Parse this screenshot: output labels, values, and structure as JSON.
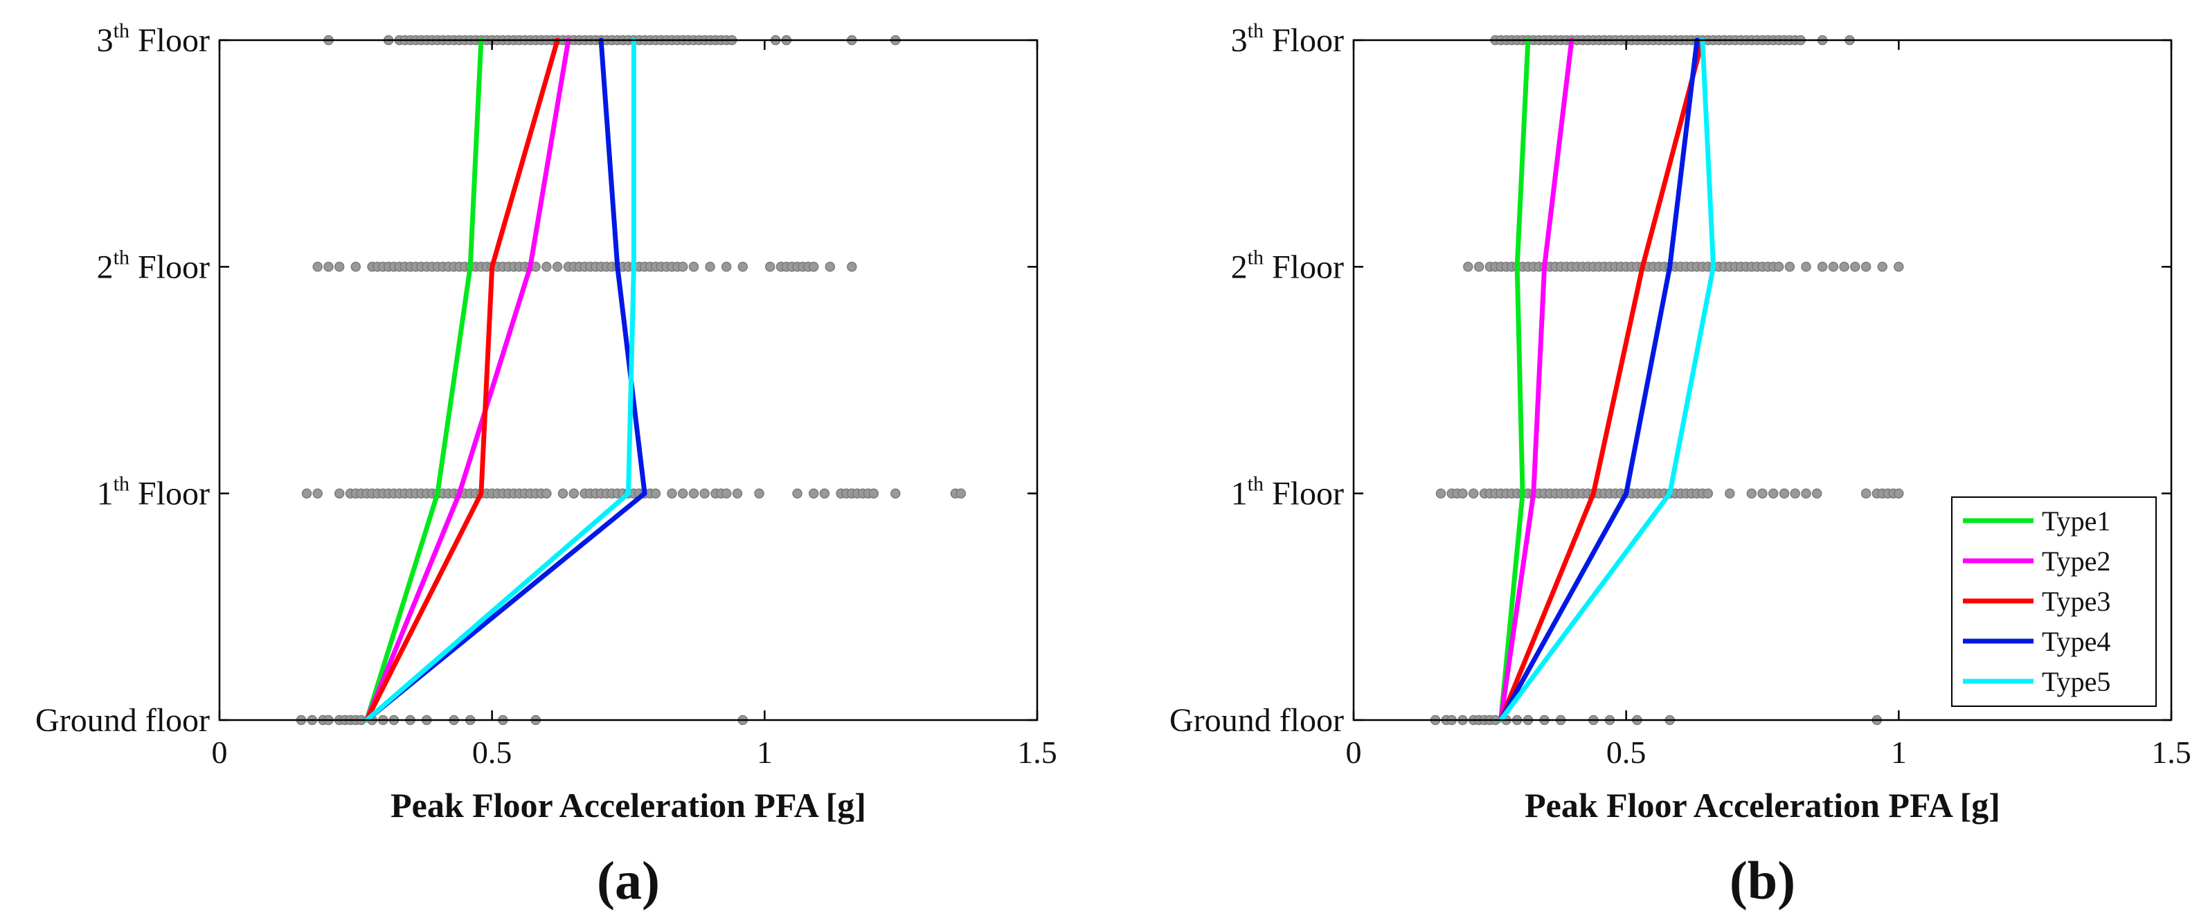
{
  "colors": {
    "type1": "#00e81b",
    "type2": "#ff00ff",
    "type3": "#ff0000",
    "type4": "#0018e6",
    "type5": "#00f2ff",
    "scatter": "#999999",
    "axis": "#000000"
  },
  "chart_data": [
    {
      "type": "line",
      "panel_label": "(a)",
      "xlabel": "Peak Floor Acceleration PFA [g]",
      "xlim": [
        0,
        1.5
      ],
      "xticks": [
        "0",
        "0.5",
        "1",
        "1.5"
      ],
      "floors": [
        {
          "base": "Ground floor",
          "sup": ""
        },
        {
          "base": "1",
          "sup": "th",
          "rest": " Floor"
        },
        {
          "base": "2",
          "sup": "th",
          "rest": " Floor"
        },
        {
          "base": "3",
          "sup": "th",
          "rest": " Floor"
        }
      ],
      "series": [
        {
          "name": "Type1",
          "color_key": "type1",
          "values": [
            0.27,
            0.4,
            0.46,
            0.48
          ]
        },
        {
          "name": "Type2",
          "color_key": "type2",
          "values": [
            0.27,
            0.44,
            0.57,
            0.64
          ]
        },
        {
          "name": "Type3",
          "color_key": "type3",
          "values": [
            0.27,
            0.48,
            0.5,
            0.62
          ]
        },
        {
          "name": "Type4",
          "color_key": "type4",
          "values": [
            0.27,
            0.78,
            0.73,
            0.7
          ]
        },
        {
          "name": "Type5",
          "color_key": "type5",
          "values": [
            0.27,
            0.75,
            0.76,
            0.76
          ]
        }
      ],
      "scatter": [
        [
          0.15,
          0.17,
          0.19,
          0.2,
          0.22,
          0.23,
          0.24,
          0.25,
          0.26,
          0.28,
          0.3,
          0.32,
          0.35,
          0.38,
          0.43,
          0.46,
          0.52,
          0.58,
          0.96
        ],
        [
          0.16,
          0.18,
          0.22,
          0.24,
          0.25,
          0.26,
          0.27,
          0.28,
          0.29,
          0.3,
          0.31,
          0.32,
          0.33,
          0.34,
          0.35,
          0.36,
          0.37,
          0.38,
          0.39,
          0.4,
          0.41,
          0.42,
          0.43,
          0.44,
          0.45,
          0.46,
          0.47,
          0.48,
          0.49,
          0.5,
          0.51,
          0.52,
          0.53,
          0.54,
          0.55,
          0.56,
          0.57,
          0.58,
          0.59,
          0.6,
          0.63,
          0.65,
          0.67,
          0.68,
          0.69,
          0.7,
          0.71,
          0.72,
          0.73,
          0.74,
          0.75,
          0.76,
          0.77,
          0.78,
          0.79,
          0.8,
          0.83,
          0.85,
          0.87,
          0.89,
          0.91,
          0.92,
          0.93,
          0.95,
          0.99,
          1.06,
          1.09,
          1.11,
          1.14,
          1.15,
          1.16,
          1.17,
          1.18,
          1.19,
          1.2,
          1.24,
          1.35,
          1.36
        ],
        [
          0.18,
          0.2,
          0.22,
          0.25,
          0.28,
          0.29,
          0.3,
          0.31,
          0.32,
          0.33,
          0.34,
          0.35,
          0.36,
          0.37,
          0.38,
          0.39,
          0.4,
          0.41,
          0.42,
          0.43,
          0.44,
          0.45,
          0.46,
          0.47,
          0.48,
          0.49,
          0.5,
          0.51,
          0.52,
          0.53,
          0.54,
          0.55,
          0.56,
          0.57,
          0.58,
          0.6,
          0.62,
          0.64,
          0.65,
          0.66,
          0.67,
          0.68,
          0.69,
          0.7,
          0.71,
          0.72,
          0.73,
          0.74,
          0.75,
          0.76,
          0.77,
          0.78,
          0.79,
          0.8,
          0.81,
          0.82,
          0.83,
          0.84,
          0.85,
          0.87,
          0.9,
          0.93,
          0.96,
          1.01,
          1.03,
          1.04,
          1.05,
          1.06,
          1.07,
          1.08,
          1.09,
          1.12,
          1.16
        ],
        [
          0.2,
          0.31,
          0.33,
          0.34,
          0.35,
          0.36,
          0.37,
          0.38,
          0.39,
          0.4,
          0.41,
          0.42,
          0.43,
          0.44,
          0.45,
          0.46,
          0.47,
          0.48,
          0.49,
          0.5,
          0.51,
          0.52,
          0.53,
          0.54,
          0.55,
          0.56,
          0.57,
          0.58,
          0.59,
          0.6,
          0.61,
          0.62,
          0.63,
          0.64,
          0.65,
          0.66,
          0.67,
          0.68,
          0.69,
          0.7,
          0.71,
          0.72,
          0.73,
          0.74,
          0.75,
          0.76,
          0.77,
          0.78,
          0.79,
          0.8,
          0.81,
          0.82,
          0.83,
          0.84,
          0.85,
          0.86,
          0.87,
          0.88,
          0.89,
          0.9,
          0.91,
          0.92,
          0.93,
          0.94,
          1.02,
          1.04,
          1.16,
          1.24
        ]
      ]
    },
    {
      "type": "line",
      "panel_label": "(b)",
      "xlabel": "Peak Floor Acceleration PFA [g]",
      "xlim": [
        0,
        1.5
      ],
      "xticks": [
        "0",
        "0.5",
        "1",
        "1.5"
      ],
      "floors": [
        {
          "base": "Ground floor",
          "sup": ""
        },
        {
          "base": "1",
          "sup": "th",
          "rest": " Floor"
        },
        {
          "base": "2",
          "sup": "th",
          "rest": " Floor"
        },
        {
          "base": "3",
          "sup": "th",
          "rest": " Floor"
        }
      ],
      "series": [
        {
          "name": "Type1",
          "color_key": "type1",
          "values": [
            0.27,
            0.31,
            0.3,
            0.32
          ]
        },
        {
          "name": "Type2",
          "color_key": "type2",
          "values": [
            0.27,
            0.33,
            0.35,
            0.4
          ]
        },
        {
          "name": "Type3",
          "color_key": "type3",
          "values": [
            0.27,
            0.44,
            0.53,
            0.64
          ]
        },
        {
          "name": "Type4",
          "color_key": "type4",
          "values": [
            0.27,
            0.5,
            0.58,
            0.63
          ]
        },
        {
          "name": "Type5",
          "color_key": "type5",
          "values": [
            0.27,
            0.58,
            0.66,
            0.64
          ]
        }
      ],
      "legend": {
        "position": "bottom-right"
      },
      "scatter": [
        [
          0.15,
          0.17,
          0.18,
          0.2,
          0.22,
          0.23,
          0.24,
          0.25,
          0.26,
          0.28,
          0.3,
          0.32,
          0.35,
          0.38,
          0.44,
          0.47,
          0.52,
          0.58,
          0.96
        ],
        [
          0.16,
          0.18,
          0.19,
          0.2,
          0.22,
          0.24,
          0.25,
          0.26,
          0.27,
          0.28,
          0.29,
          0.3,
          0.31,
          0.32,
          0.33,
          0.34,
          0.35,
          0.36,
          0.37,
          0.38,
          0.39,
          0.4,
          0.41,
          0.42,
          0.43,
          0.44,
          0.45,
          0.46,
          0.47,
          0.48,
          0.49,
          0.5,
          0.51,
          0.52,
          0.53,
          0.54,
          0.55,
          0.56,
          0.57,
          0.58,
          0.59,
          0.6,
          0.61,
          0.62,
          0.63,
          0.64,
          0.65,
          0.69,
          0.73,
          0.75,
          0.77,
          0.79,
          0.81,
          0.83,
          0.85,
          0.94,
          0.96,
          0.97,
          0.98,
          0.99,
          1.0
        ],
        [
          0.21,
          0.23,
          0.25,
          0.26,
          0.27,
          0.28,
          0.29,
          0.3,
          0.31,
          0.32,
          0.33,
          0.34,
          0.35,
          0.36,
          0.37,
          0.38,
          0.39,
          0.4,
          0.41,
          0.42,
          0.43,
          0.44,
          0.45,
          0.46,
          0.47,
          0.48,
          0.49,
          0.5,
          0.51,
          0.52,
          0.53,
          0.54,
          0.55,
          0.56,
          0.57,
          0.58,
          0.59,
          0.6,
          0.61,
          0.62,
          0.63,
          0.64,
          0.65,
          0.66,
          0.67,
          0.68,
          0.69,
          0.7,
          0.71,
          0.72,
          0.73,
          0.74,
          0.75,
          0.76,
          0.77,
          0.78,
          0.8,
          0.83,
          0.86,
          0.88,
          0.9,
          0.92,
          0.94,
          0.97,
          1.0
        ],
        [
          0.26,
          0.27,
          0.28,
          0.29,
          0.3,
          0.31,
          0.32,
          0.33,
          0.34,
          0.35,
          0.36,
          0.37,
          0.38,
          0.39,
          0.4,
          0.41,
          0.42,
          0.43,
          0.44,
          0.45,
          0.46,
          0.47,
          0.48,
          0.49,
          0.5,
          0.51,
          0.52,
          0.53,
          0.54,
          0.55,
          0.56,
          0.57,
          0.58,
          0.59,
          0.6,
          0.61,
          0.62,
          0.63,
          0.64,
          0.65,
          0.66,
          0.67,
          0.68,
          0.69,
          0.7,
          0.71,
          0.72,
          0.73,
          0.74,
          0.75,
          0.76,
          0.77,
          0.78,
          0.79,
          0.8,
          0.81,
          0.82,
          0.86,
          0.91
        ]
      ]
    }
  ]
}
